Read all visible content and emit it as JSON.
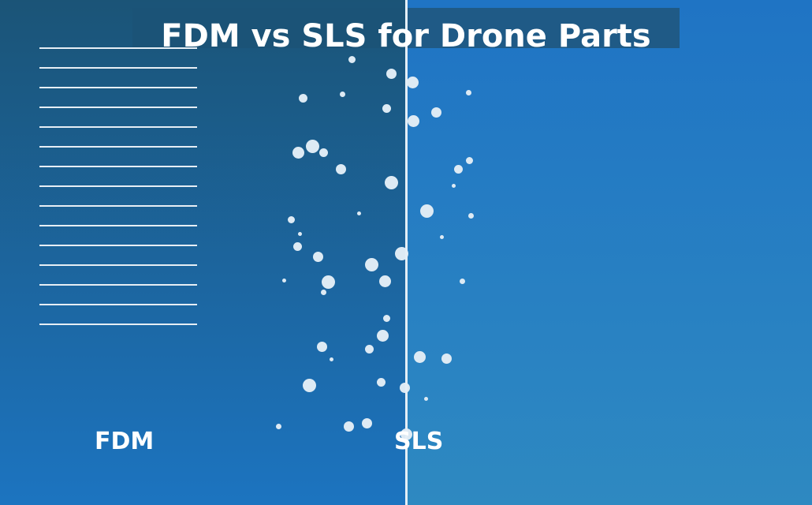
{
  "title": "FDM vs SLS for Drone Parts",
  "labels": {
    "fdm": "FDM",
    "sls": "SLS"
  },
  "colors": {
    "left_panel_top": "#1b5477",
    "left_panel_bottom": "#1c74c0",
    "right_panel_top": "#1f74c4",
    "right_panel_bottom": "#2e89c1",
    "divider": "#e4eef6",
    "text": "#ffffff",
    "particle": "#ddeaf4"
  },
  "fdm_layer_count": 15,
  "sls_particle_count": 47
}
